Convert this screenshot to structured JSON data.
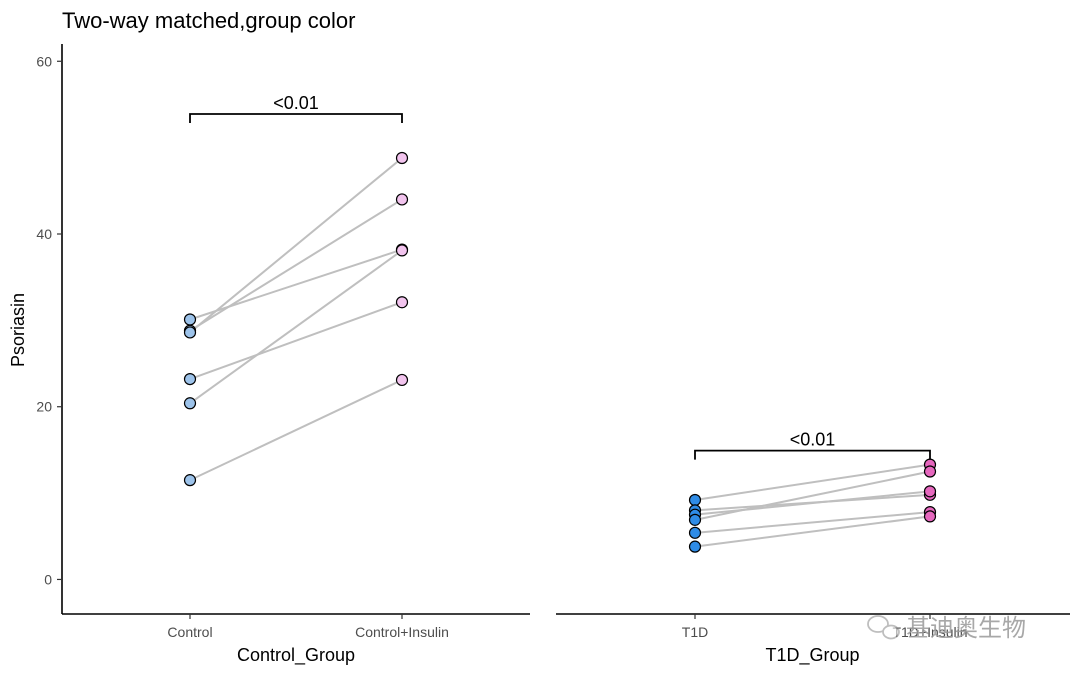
{
  "chart_data": {
    "type": "scatter",
    "title": "Two-way matched,group color",
    "ylabel": "Psoriasin",
    "ylim": [
      -4,
      62
    ],
    "yticks": [
      0,
      20,
      40,
      60
    ],
    "grid": false,
    "panels": [
      {
        "xlabel": "Control_Group",
        "categories": [
          "Control",
          "Control+Insulin"
        ],
        "colors": [
          "#9dc3ea",
          "#f2c4ee"
        ],
        "pairs": [
          [
            30.1,
            38.2
          ],
          [
            28.8,
            44.0
          ],
          [
            28.6,
            48.8
          ],
          [
            23.2,
            32.1
          ],
          [
            20.4,
            38.1
          ],
          [
            11.5,
            23.1
          ]
        ],
        "significance": "<0.01"
      },
      {
        "xlabel": "T1D_Group",
        "categories": [
          "T1D",
          "T1D+Insulin"
        ],
        "colors": [
          "#2f8ce6",
          "#e667be"
        ],
        "pairs": [
          [
            9.2,
            13.3
          ],
          [
            8.0,
            9.8
          ],
          [
            7.5,
            10.2
          ],
          [
            6.9,
            12.5
          ],
          [
            5.4,
            7.8
          ],
          [
            3.8,
            7.3
          ]
        ],
        "significance": "<0.01"
      }
    ]
  },
  "watermark": "基迪奥生物"
}
